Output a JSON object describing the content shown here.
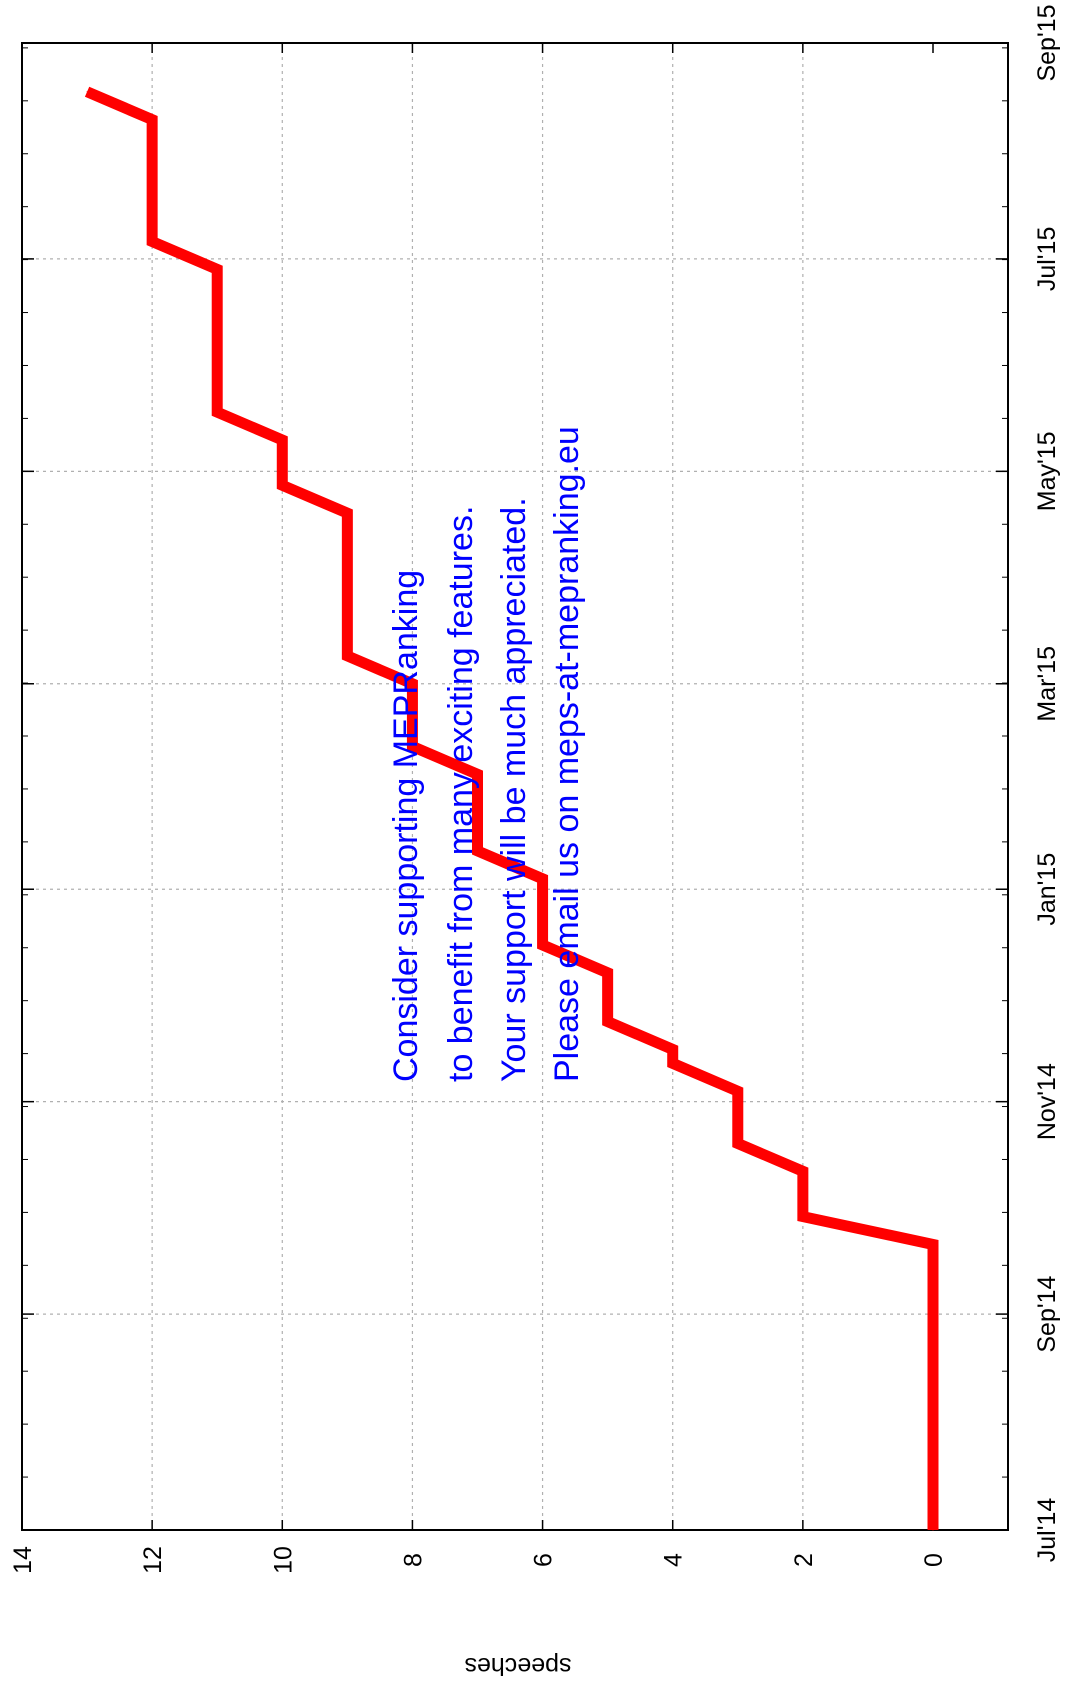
{
  "chart_data": {
    "type": "line",
    "step": true,
    "ylabel": "speeches",
    "xlabel": "",
    "title": "",
    "y_ticks": [
      "0",
      "2",
      "4",
      "6",
      "8",
      "10",
      "12",
      "14"
    ],
    "ylim": [
      0,
      14
    ],
    "x_ticks": [
      "Jul'14",
      "Sep'14",
      "Nov'14",
      "Jan'15",
      "Mar'15",
      "May'15",
      "Jul'15",
      "Sep'15"
    ],
    "xlim": [
      "2014-07-01",
      "2015-09-01"
    ],
    "grid": true,
    "series": [
      {
        "color": "#ff0000",
        "points": [
          {
            "x": "2014-07-01",
            "y": 0
          },
          {
            "x": "2014-09-08",
            "y": 0
          },
          {
            "x": "2014-09-29",
            "y": 2
          },
          {
            "x": "2014-10-20",
            "y": 3
          },
          {
            "x": "2014-11-12",
            "y": 4
          },
          {
            "x": "2014-11-24",
            "y": 5
          },
          {
            "x": "2014-12-16",
            "y": 6
          },
          {
            "x": "2015-01-12",
            "y": 7
          },
          {
            "x": "2015-02-11",
            "y": 8
          },
          {
            "x": "2015-03-09",
            "y": 9
          },
          {
            "x": "2015-04-27",
            "y": 10
          },
          {
            "x": "2015-05-18",
            "y": 11
          },
          {
            "x": "2015-07-06",
            "y": 12
          },
          {
            "x": "2015-08-18",
            "y": 13
          }
        ]
      }
    ],
    "annotations": [
      "Consider supporting MEPRanking",
      "to benefit from many exciting features.",
      "Your support will be much appreciated.",
      "Please email us on meps-at-mepranking.eu"
    ],
    "annotation_color": "#0000ff"
  }
}
